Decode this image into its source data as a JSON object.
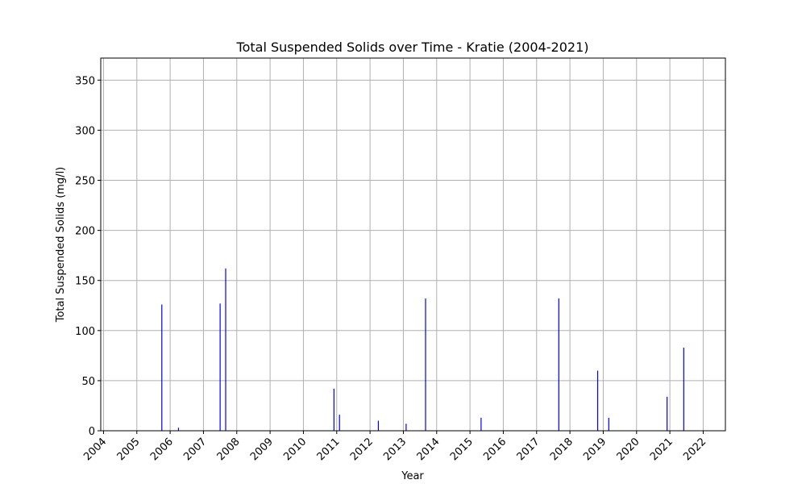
{
  "chart_data": {
    "type": "bar",
    "title": "Total Suspended Solids over Time - Kratie (2004-2021)",
    "xlabel": "Year",
    "ylabel": "Total Suspended Solids (mg/l)",
    "x_ticks": [
      "2004",
      "2005",
      "2006",
      "2007",
      "2008",
      "2009",
      "2010",
      "2011",
      "2012",
      "2013",
      "2014",
      "2015",
      "2016",
      "2017",
      "2018",
      "2019",
      "2020",
      "2021",
      "2022"
    ],
    "y_ticks": [
      0,
      50,
      100,
      150,
      200,
      250,
      300,
      350
    ],
    "xlim": [
      "2003-12-01",
      "2022-09-01"
    ],
    "ylim": [
      0,
      372
    ],
    "grid": true,
    "bar_color": "#0000ff",
    "x": [
      "2005-10-01",
      "2006-04-01",
      "2007-07-01",
      "2007-09-01",
      "2010-12-01",
      "2011-02-01",
      "2012-04-01",
      "2013-02-01",
      "2013-09-01",
      "2015-05-01",
      "2017-09-01",
      "2018-11-01",
      "2019-03-01",
      "2020-12-01",
      "2021-06-01"
    ],
    "values": [
      126,
      3,
      127,
      162,
      42,
      16,
      10,
      7,
      132,
      13,
      132,
      60,
      13,
      34,
      83
    ]
  }
}
